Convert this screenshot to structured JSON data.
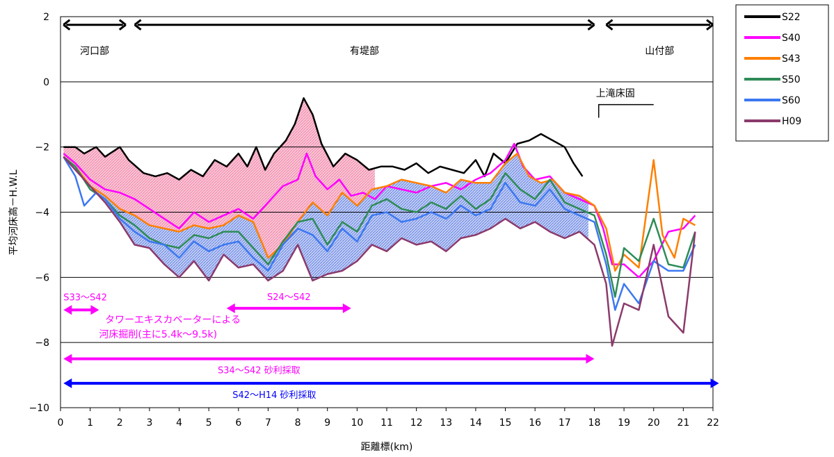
{
  "chart_data": {
    "type": "line",
    "title": "",
    "xlabel": "距離標(km)",
    "ylabel": "平均河床高－H.W.L",
    "xlim": [
      0,
      22
    ],
    "ylim": [
      -10,
      2
    ],
    "x_ticks": [
      0,
      1,
      2,
      3,
      4,
      5,
      6,
      7,
      8,
      9,
      10,
      11,
      12,
      13,
      14,
      15,
      16,
      17,
      18,
      19,
      20,
      21,
      22
    ],
    "y_ticks": [
      2,
      0,
      -2,
      -4,
      -6,
      -8,
      -10
    ],
    "grid": "horizontal",
    "legend_position": "top-right",
    "series": [
      {
        "name": "S22",
        "color": "#000000",
        "points": [
          [
            0.1,
            -2.0
          ],
          [
            0.5,
            -2.0
          ],
          [
            0.8,
            -2.2
          ],
          [
            1.2,
            -2.0
          ],
          [
            1.5,
            -2.3
          ],
          [
            2.0,
            -2.0
          ],
          [
            2.3,
            -2.4
          ],
          [
            2.8,
            -2.8
          ],
          [
            3.2,
            -2.9
          ],
          [
            3.6,
            -2.8
          ],
          [
            4.0,
            -3.0
          ],
          [
            4.4,
            -2.7
          ],
          [
            4.8,
            -2.9
          ],
          [
            5.2,
            -2.4
          ],
          [
            5.6,
            -2.6
          ],
          [
            6.0,
            -2.2
          ],
          [
            6.3,
            -2.6
          ],
          [
            6.6,
            -2.0
          ],
          [
            6.9,
            -2.7
          ],
          [
            7.2,
            -2.2
          ],
          [
            7.6,
            -1.8
          ],
          [
            7.9,
            -1.3
          ],
          [
            8.2,
            -0.5
          ],
          [
            8.5,
            -1.0
          ],
          [
            8.8,
            -1.9
          ],
          [
            9.2,
            -2.6
          ],
          [
            9.6,
            -2.2
          ],
          [
            10.0,
            -2.4
          ],
          [
            10.4,
            -2.7
          ],
          [
            10.8,
            -2.6
          ],
          [
            11.2,
            -2.6
          ],
          [
            11.6,
            -2.7
          ],
          [
            12.0,
            -2.5
          ],
          [
            12.4,
            -2.8
          ],
          [
            12.8,
            -2.6
          ],
          [
            13.2,
            -2.7
          ],
          [
            13.6,
            -2.8
          ],
          [
            14.0,
            -2.4
          ],
          [
            14.3,
            -2.9
          ],
          [
            14.6,
            -2.2
          ],
          [
            15.0,
            -2.5
          ],
          [
            15.4,
            -1.9
          ],
          [
            15.8,
            -1.8
          ],
          [
            16.2,
            -1.6
          ],
          [
            16.6,
            -1.8
          ],
          [
            17.0,
            -2.0
          ],
          [
            17.3,
            -2.5
          ],
          [
            17.6,
            -2.9
          ]
        ]
      },
      {
        "name": "S40",
        "color": "#ff00ff",
        "points": [
          [
            0.1,
            -2.2
          ],
          [
            0.5,
            -2.5
          ],
          [
            1.0,
            -3.0
          ],
          [
            1.5,
            -3.3
          ],
          [
            2.0,
            -3.4
          ],
          [
            2.5,
            -3.6
          ],
          [
            3.0,
            -3.9
          ],
          [
            3.5,
            -4.2
          ],
          [
            4.0,
            -4.5
          ],
          [
            4.5,
            -4.0
          ],
          [
            5.0,
            -4.3
          ],
          [
            5.5,
            -4.1
          ],
          [
            6.0,
            -3.9
          ],
          [
            6.5,
            -4.2
          ],
          [
            7.0,
            -3.7
          ],
          [
            7.5,
            -3.2
          ],
          [
            8.0,
            -3.0
          ],
          [
            8.3,
            -2.2
          ],
          [
            8.6,
            -2.9
          ],
          [
            9.0,
            -3.3
          ],
          [
            9.4,
            -3.0
          ],
          [
            9.8,
            -3.5
          ],
          [
            10.2,
            -3.4
          ],
          [
            10.6,
            -3.6
          ],
          [
            11.0,
            -3.2
          ],
          [
            11.5,
            -3.3
          ],
          [
            12.0,
            -3.4
          ],
          [
            12.5,
            -3.2
          ],
          [
            13.0,
            -3.1
          ],
          [
            13.5,
            -3.3
          ],
          [
            14.0,
            -3.0
          ],
          [
            14.5,
            -2.8
          ],
          [
            15.0,
            -2.4
          ],
          [
            15.3,
            -1.9
          ],
          [
            15.6,
            -2.6
          ],
          [
            16.0,
            -3.0
          ],
          [
            16.5,
            -2.9
          ],
          [
            17.0,
            -3.4
          ],
          [
            17.5,
            -3.6
          ],
          [
            18.0,
            -3.8
          ],
          [
            18.3,
            -4.5
          ],
          [
            18.6,
            -5.6
          ],
          [
            19.0,
            -5.6
          ],
          [
            19.5,
            -6.0
          ],
          [
            20.0,
            -5.5
          ],
          [
            20.5,
            -4.6
          ],
          [
            21.0,
            -4.5
          ],
          [
            21.4,
            -4.1
          ]
        ]
      },
      {
        "name": "S43",
        "color": "#ff7f00",
        "points": [
          [
            0.1,
            -2.3
          ],
          [
            0.5,
            -2.6
          ],
          [
            1.0,
            -3.2
          ],
          [
            1.5,
            -3.5
          ],
          [
            2.0,
            -3.9
          ],
          [
            2.5,
            -4.1
          ],
          [
            3.0,
            -4.4
          ],
          [
            3.5,
            -4.5
          ],
          [
            4.0,
            -4.6
          ],
          [
            4.5,
            -4.4
          ],
          [
            5.0,
            -4.5
          ],
          [
            5.5,
            -4.4
          ],
          [
            6.0,
            -4.1
          ],
          [
            6.5,
            -4.3
          ],
          [
            7.0,
            -5.4
          ],
          [
            7.5,
            -5.0
          ],
          [
            8.0,
            -4.3
          ],
          [
            8.5,
            -3.7
          ],
          [
            9.0,
            -4.1
          ],
          [
            9.5,
            -3.4
          ],
          [
            10.0,
            -3.8
          ],
          [
            10.5,
            -3.3
          ],
          [
            11.0,
            -3.2
          ],
          [
            11.5,
            -3.0
          ],
          [
            12.0,
            -3.1
          ],
          [
            12.5,
            -3.2
          ],
          [
            13.0,
            -3.4
          ],
          [
            13.5,
            -3.0
          ],
          [
            14.0,
            -3.1
          ],
          [
            14.5,
            -3.1
          ],
          [
            15.0,
            -2.5
          ],
          [
            15.4,
            -2.2
          ],
          [
            15.8,
            -2.9
          ],
          [
            16.2,
            -3.1
          ],
          [
            16.6,
            -3.0
          ],
          [
            17.0,
            -3.4
          ],
          [
            17.5,
            -3.5
          ],
          [
            18.0,
            -3.8
          ],
          [
            18.4,
            -4.5
          ],
          [
            18.7,
            -5.8
          ],
          [
            19.0,
            -5.3
          ],
          [
            19.5,
            -5.7
          ],
          [
            20.0,
            -2.4
          ],
          [
            20.3,
            -4.7
          ],
          [
            20.7,
            -5.4
          ],
          [
            21.0,
            -4.2
          ],
          [
            21.4,
            -4.4
          ]
        ]
      },
      {
        "name": "S50",
        "color": "#2e8b57",
        "points": [
          [
            0.1,
            -2.3
          ],
          [
            0.5,
            -2.6
          ],
          [
            1.0,
            -3.3
          ],
          [
            1.5,
            -3.6
          ],
          [
            2.0,
            -4.1
          ],
          [
            2.5,
            -4.4
          ],
          [
            3.0,
            -4.8
          ],
          [
            3.5,
            -5.0
          ],
          [
            4.0,
            -5.1
          ],
          [
            4.5,
            -4.7
          ],
          [
            5.0,
            -4.8
          ],
          [
            5.5,
            -4.6
          ],
          [
            6.0,
            -4.6
          ],
          [
            6.5,
            -5.1
          ],
          [
            7.0,
            -5.6
          ],
          [
            7.5,
            -4.9
          ],
          [
            8.0,
            -4.3
          ],
          [
            8.5,
            -4.2
          ],
          [
            9.0,
            -5.0
          ],
          [
            9.5,
            -4.3
          ],
          [
            10.0,
            -4.6
          ],
          [
            10.5,
            -3.8
          ],
          [
            11.0,
            -3.6
          ],
          [
            11.5,
            -3.9
          ],
          [
            12.0,
            -4.0
          ],
          [
            12.5,
            -3.7
          ],
          [
            13.0,
            -3.9
          ],
          [
            13.5,
            -3.5
          ],
          [
            14.0,
            -3.9
          ],
          [
            14.5,
            -3.6
          ],
          [
            15.0,
            -2.8
          ],
          [
            15.5,
            -3.3
          ],
          [
            16.0,
            -3.6
          ],
          [
            16.5,
            -3.0
          ],
          [
            17.0,
            -3.7
          ],
          [
            17.5,
            -3.9
          ],
          [
            18.0,
            -4.1
          ],
          [
            18.4,
            -5.3
          ],
          [
            18.7,
            -6.6
          ],
          [
            19.0,
            -5.1
          ],
          [
            19.5,
            -5.5
          ],
          [
            20.0,
            -4.2
          ],
          [
            20.5,
            -5.6
          ],
          [
            21.0,
            -5.7
          ],
          [
            21.4,
            -4.6
          ]
        ]
      },
      {
        "name": "S60",
        "color": "#3c78f0",
        "points": [
          [
            0.1,
            -2.3
          ],
          [
            0.5,
            -2.9
          ],
          [
            0.8,
            -3.8
          ],
          [
            1.2,
            -3.4
          ],
          [
            1.5,
            -3.6
          ],
          [
            2.0,
            -4.2
          ],
          [
            2.5,
            -4.6
          ],
          [
            3.0,
            -4.9
          ],
          [
            3.5,
            -5.0
          ],
          [
            4.0,
            -5.4
          ],
          [
            4.5,
            -4.9
          ],
          [
            5.0,
            -5.2
          ],
          [
            5.5,
            -5.0
          ],
          [
            6.0,
            -4.9
          ],
          [
            6.5,
            -5.4
          ],
          [
            7.0,
            -5.8
          ],
          [
            7.5,
            -5.0
          ],
          [
            8.0,
            -4.5
          ],
          [
            8.5,
            -4.7
          ],
          [
            9.0,
            -5.2
          ],
          [
            9.5,
            -4.5
          ],
          [
            10.0,
            -4.9
          ],
          [
            10.5,
            -4.1
          ],
          [
            11.0,
            -4.0
          ],
          [
            11.5,
            -4.3
          ],
          [
            12.0,
            -4.2
          ],
          [
            12.5,
            -4.0
          ],
          [
            13.0,
            -4.2
          ],
          [
            13.5,
            -3.8
          ],
          [
            14.0,
            -4.1
          ],
          [
            14.5,
            -3.9
          ],
          [
            15.0,
            -3.1
          ],
          [
            15.5,
            -3.7
          ],
          [
            16.0,
            -3.8
          ],
          [
            16.5,
            -3.3
          ],
          [
            17.0,
            -3.9
          ],
          [
            17.5,
            -4.1
          ],
          [
            18.0,
            -4.3
          ],
          [
            18.4,
            -5.6
          ],
          [
            18.7,
            -7.0
          ],
          [
            19.0,
            -6.2
          ],
          [
            19.5,
            -6.8
          ],
          [
            20.0,
            -5.5
          ],
          [
            20.5,
            -5.8
          ],
          [
            21.0,
            -5.8
          ],
          [
            21.4,
            -5.0
          ]
        ]
      },
      {
        "name": "H09",
        "color": "#8b3a6b",
        "points": [
          [
            0.1,
            -2.3
          ],
          [
            0.5,
            -2.7
          ],
          [
            1.0,
            -3.2
          ],
          [
            1.5,
            -3.7
          ],
          [
            2.0,
            -4.3
          ],
          [
            2.5,
            -5.0
          ],
          [
            3.0,
            -5.1
          ],
          [
            3.5,
            -5.6
          ],
          [
            4.0,
            -6.0
          ],
          [
            4.5,
            -5.5
          ],
          [
            5.0,
            -6.1
          ],
          [
            5.5,
            -5.3
          ],
          [
            6.0,
            -5.7
          ],
          [
            6.5,
            -5.6
          ],
          [
            7.0,
            -6.1
          ],
          [
            7.5,
            -5.8
          ],
          [
            8.0,
            -5.0
          ],
          [
            8.5,
            -6.1
          ],
          [
            9.0,
            -5.9
          ],
          [
            9.5,
            -5.8
          ],
          [
            10.0,
            -5.5
          ],
          [
            10.5,
            -5.0
          ],
          [
            11.0,
            -5.2
          ],
          [
            11.5,
            -4.8
          ],
          [
            12.0,
            -5.0
          ],
          [
            12.5,
            -4.9
          ],
          [
            13.0,
            -5.2
          ],
          [
            13.5,
            -4.8
          ],
          [
            14.0,
            -4.7
          ],
          [
            14.5,
            -4.5
          ],
          [
            15.0,
            -4.2
          ],
          [
            15.5,
            -4.5
          ],
          [
            16.0,
            -4.3
          ],
          [
            16.5,
            -4.6
          ],
          [
            17.0,
            -4.8
          ],
          [
            17.5,
            -4.6
          ],
          [
            18.0,
            -5.0
          ],
          [
            18.4,
            -6.2
          ],
          [
            18.6,
            -8.1
          ],
          [
            19.0,
            -6.8
          ],
          [
            19.5,
            -7.0
          ],
          [
            20.0,
            -5.0
          ],
          [
            20.5,
            -7.2
          ],
          [
            21.0,
            -7.7
          ],
          [
            21.4,
            -4.6
          ]
        ]
      }
    ],
    "sections": [
      {
        "label": "河口部",
        "from": 0.1,
        "to": 2.2
      },
      {
        "label": "有堤部",
        "from": 2.5,
        "to": 18.0
      },
      {
        "label": "山付部",
        "from": 18.4,
        "to": 22.0
      }
    ],
    "weir": {
      "label": "上滝床固",
      "x": 18.1
    },
    "ranges": [
      {
        "label": "S33～S42",
        "from": 0.1,
        "to": 1.3,
        "y": -7.0,
        "color": "#ff00ff"
      },
      {
        "label": "S24～S42",
        "from": 5.6,
        "to": 9.8,
        "y": -6.95,
        "color": "#ff00ff"
      },
      {
        "label": "S34～S42 砂利採取",
        "from": 0.1,
        "to": 18.0,
        "y": -8.5,
        "color": "#ff00ff"
      },
      {
        "label": "S42～H14 砂利採取",
        "from": 0.1,
        "to": 22.2,
        "y": -9.25,
        "color": "#0000ff"
      }
    ],
    "annotations": [
      {
        "text": "タワーエキスカベーターによる",
        "x": 1.5,
        "y": -7.4
      },
      {
        "text": "河床掘削(主に5.4k～9.5k)",
        "x": 1.3,
        "y": -7.85
      }
    ]
  }
}
